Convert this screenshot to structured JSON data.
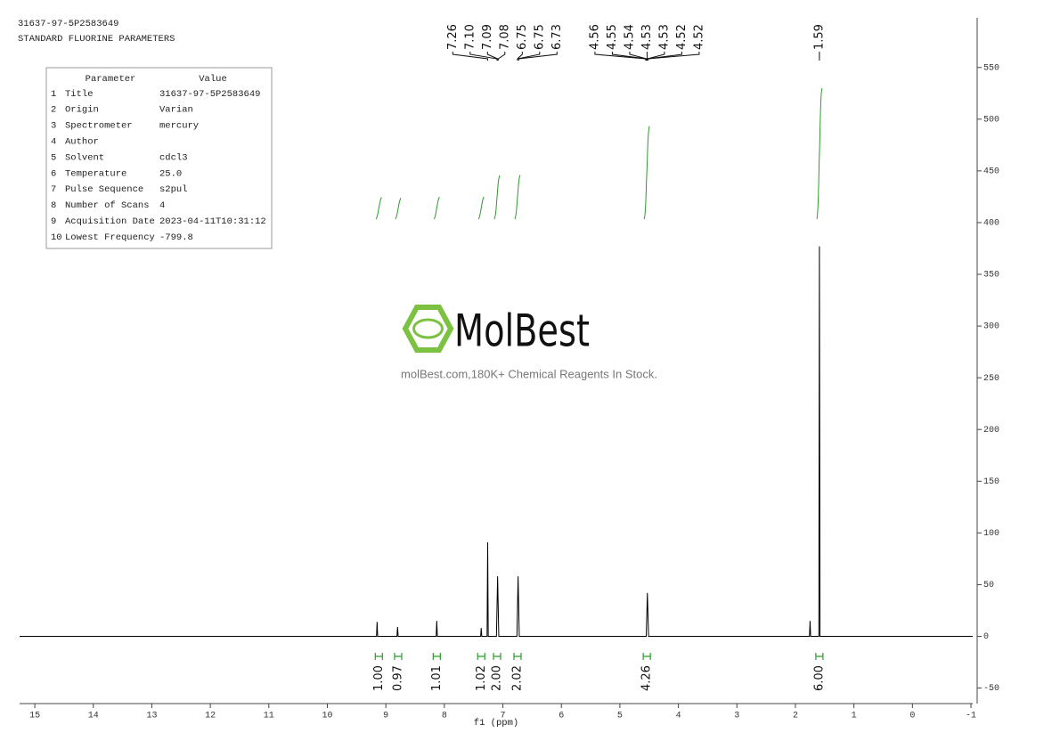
{
  "header": {
    "sample_id": "31637-97-5P2583649",
    "subtitle": "STANDARD FLUORINE PARAMETERS"
  },
  "table": {
    "columns": [
      "Parameter",
      "Value"
    ],
    "rows": [
      [
        "1",
        "Title",
        "31637-97-5P2583649"
      ],
      [
        "2",
        "Origin",
        "Varian"
      ],
      [
        "3",
        "Spectrometer",
        "mercury"
      ],
      [
        "4",
        "Author"
      ],
      [
        "5",
        "Solvent",
        "cdcl3"
      ],
      [
        "6",
        "Temperature",
        "25.0"
      ],
      [
        "7",
        "Pulse Sequence",
        "s2pul"
      ],
      [
        "8",
        "Number of Scans",
        "4"
      ],
      [
        "9",
        "Acquisition Date",
        "2023-04-11T10:31:12"
      ],
      [
        "10",
        "Lowest Frequency",
        "-799.8"
      ]
    ]
  },
  "watermark": {
    "brand": "MolBest",
    "tagline": "molBest.com,180K+ Chemical Reagents In Stock."
  },
  "chart_data": {
    "type": "nmr",
    "xlabel": "f1 (ppm)",
    "xlim": [
      15.26,
      -1.03
    ],
    "xticks": [
      15,
      14,
      13,
      12,
      11,
      10,
      9,
      8,
      7,
      6,
      5,
      4,
      3,
      2,
      1,
      0,
      -1
    ],
    "ylim": [
      -65,
      598
    ],
    "yticks": [
      -50,
      0,
      50,
      100,
      150,
      200,
      250,
      300,
      350,
      400,
      450,
      500,
      550
    ],
    "spectrum": {
      "color": "#000000",
      "x": [
        15.26,
        9.16,
        9.15,
        9.14,
        8.81,
        8.8,
        8.79,
        8.14,
        8.13,
        8.12,
        7.38,
        7.37,
        7.36,
        7.27,
        7.26,
        7.25,
        7.11,
        7.09,
        7.07,
        6.76,
        6.74,
        6.72,
        4.55,
        4.53,
        4.51,
        1.76,
        1.75,
        1.74,
        1.6,
        1.59,
        1.58,
        -1.03
      ],
      "values": [
        0,
        0,
        14,
        0,
        0,
        9,
        0,
        0,
        15,
        0,
        0,
        8,
        0,
        0,
        91,
        0,
        0,
        58,
        0,
        0,
        58,
        0,
        0,
        42,
        0,
        0,
        15,
        0,
        0,
        377,
        0,
        0
      ]
    },
    "peak_labels": {
      "values": [
        7.26,
        7.1,
        7.09,
        7.08,
        6.75,
        6.75,
        6.73,
        4.56,
        4.55,
        4.54,
        4.53,
        4.53,
        4.52,
        4.52,
        1.59
      ],
      "value_labels": [
        "7.26",
        "7.10",
        "7.09",
        "7.08",
        "6.75",
        "6.75",
        "6.73",
        "4.56",
        "4.55",
        "4.54",
        "4.53",
        "4.53",
        "4.52",
        "4.52",
        "1.59"
      ]
    },
    "integrals": {
      "color": "#2e9a2e",
      "ppm": [
        9.12,
        8.79,
        8.13,
        7.37,
        7.1,
        6.75,
        4.54,
        1.59
      ],
      "values": [
        1.0,
        0.97,
        1.01,
        1.02,
        2.0,
        2.02,
        4.26,
        6.0
      ],
      "value_labels": [
        "1.00",
        "0.97",
        "1.01",
        "1.02",
        "2.00",
        "2.02",
        "4.26",
        "6.00"
      ]
    }
  }
}
